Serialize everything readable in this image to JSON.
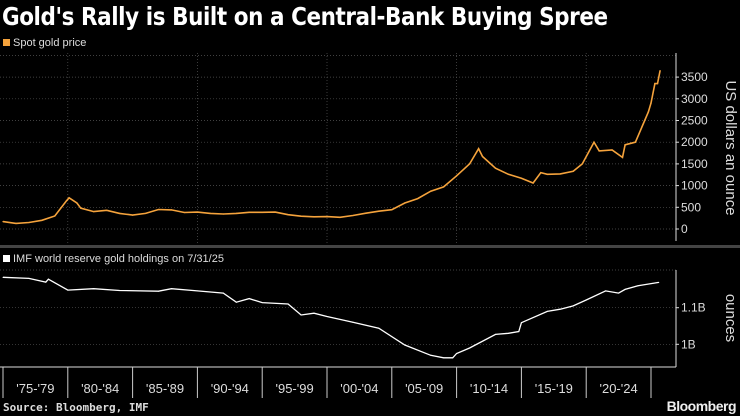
{
  "title": "Gold's Rally is Built on a Central-Bank Buying Spree",
  "source": "Source: Bloomberg, IMF",
  "logo": "Bloomberg",
  "colors": {
    "gold": "#f5a33c",
    "reserves": "#ffffff",
    "grid": "#555555",
    "background": "#000000"
  },
  "chart_data": [
    {
      "type": "line",
      "legend": "Spot gold price",
      "ylabel": "US dollars an ounce",
      "ylim": [
        -200,
        4000
      ],
      "yticks": [
        0,
        500,
        1000,
        1500,
        2000,
        2500,
        3000,
        3500
      ],
      "grid": true,
      "legend_placement": "top-left",
      "x": [
        1975,
        1976,
        1977,
        1978,
        1979,
        1979.9,
        1980.1,
        1980.7,
        1981,
        1982,
        1983,
        1984,
        1985,
        1986,
        1987,
        1988,
        1989,
        1990,
        1991,
        1992,
        1993,
        1994,
        1995,
        1996,
        1997,
        1998,
        1999,
        2000,
        2001,
        2002,
        2003,
        2004,
        2005,
        2006,
        2007,
        2008,
        2009,
        2010,
        2011,
        2011.7,
        2012,
        2013,
        2014,
        2015,
        2015.9,
        2016.5,
        2017,
        2018,
        2019,
        2019.7,
        2020.6,
        2021,
        2022,
        2022.8,
        2023,
        2023.8,
        2024.3,
        2024.8,
        2025,
        2025.3,
        2025.5,
        2025.7
      ],
      "values": [
        170,
        130,
        150,
        200,
        300,
        650,
        720,
        600,
        480,
        400,
        430,
        360,
        320,
        360,
        450,
        440,
        380,
        390,
        360,
        345,
        360,
        385,
        385,
        390,
        330,
        295,
        280,
        285,
        270,
        310,
        365,
        410,
        445,
        600,
        700,
        870,
        970,
        1225,
        1500,
        1850,
        1670,
        1400,
        1260,
        1170,
        1060,
        1300,
        1260,
        1270,
        1330,
        1500,
        2000,
        1800,
        1820,
        1650,
        1940,
        2000,
        2350,
        2700,
        2900,
        3350,
        3350,
        3650
      ]
    },
    {
      "type": "line",
      "legend": "IMF world reserve gold holdings on 7/31/25",
      "ylabel": "ounces",
      "ylim": [
        0.94,
        1.21
      ],
      "yticks": [
        1.0,
        1.1
      ],
      "ytick_labels": [
        "1B",
        "1.1B"
      ],
      "grid": true,
      "legend_placement": "top-left",
      "x": [
        1975,
        1977,
        1978.3,
        1978.5,
        1980,
        1982,
        1984,
        1987,
        1988,
        1990,
        1992,
        1993,
        1994,
        1995,
        1997,
        1998,
        1999,
        2000,
        2002,
        2004,
        2006,
        2008,
        2009,
        2009.7,
        2010,
        2011,
        2013,
        2014,
        2014.8,
        2015,
        2017,
        2018,
        2019,
        2020,
        2021.5,
        2022.5,
        2023,
        2024,
        2025.6
      ],
      "values": [
        1.183,
        1.18,
        1.17,
        1.178,
        1.148,
        1.152,
        1.147,
        1.145,
        1.152,
        1.146,
        1.14,
        1.115,
        1.125,
        1.114,
        1.11,
        1.08,
        1.085,
        1.076,
        1.06,
        1.044,
        0.998,
        0.97,
        0.963,
        0.963,
        0.975,
        0.99,
        1.027,
        1.03,
        1.035,
        1.059,
        1.09,
        1.096,
        1.105,
        1.121,
        1.146,
        1.14,
        1.15,
        1.16,
        1.169
      ]
    }
  ],
  "xaxis": {
    "tick_labels": [
      "'75-'79",
      "'80-'84",
      "'85-'89",
      "'90-'94",
      "'95-'99",
      "'00-'04",
      "'05-'09",
      "'10-'14",
      "'15-'19",
      "'20-'24"
    ]
  }
}
